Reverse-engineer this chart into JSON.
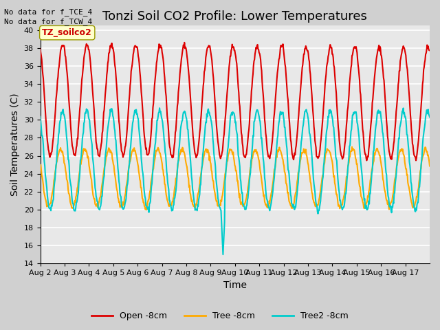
{
  "title": "Tonzi Soil CO2 Profile: Lower Temperatures",
  "xlabel": "Time",
  "ylabel": "Soil Temperatures (C)",
  "top_note_line1": "No data for f_TCE_4",
  "top_note_line2": "No data for f_TCW_4",
  "legend_box_label": "TZ_soilco2",
  "ylim": [
    14,
    40.5
  ],
  "yticks": [
    14,
    16,
    18,
    20,
    22,
    24,
    26,
    28,
    30,
    32,
    34,
    36,
    38,
    40
  ],
  "xtick_labels": [
    "Aug 2",
    "Aug 3",
    "Aug 4",
    "Aug 5",
    "Aug 6",
    "Aug 7",
    "Aug 8",
    "Aug 9",
    "Aug 10",
    "Aug 11",
    "Aug 12",
    "Aug 13",
    "Aug 14",
    "Aug 15",
    "Aug 16",
    "Aug 17"
  ],
  "series": [
    {
      "label": "Open -8cm",
      "color": "#dd0000",
      "linewidth": 1.5
    },
    {
      "label": "Tree -8cm",
      "color": "#ffaa00",
      "linewidth": 1.5
    },
    {
      "label": "Tree2 -8cm",
      "color": "#00cccc",
      "linewidth": 1.5
    }
  ],
  "fig_bg_color": "#d0d0d0",
  "plot_bg_color": "#e8e8e8",
  "grid_color": "#ffffff",
  "title_fontsize": 13,
  "axis_fontsize": 10,
  "tick_fontsize": 8,
  "legend_box_color": "#ffffcc",
  "legend_box_edge": "#999900"
}
